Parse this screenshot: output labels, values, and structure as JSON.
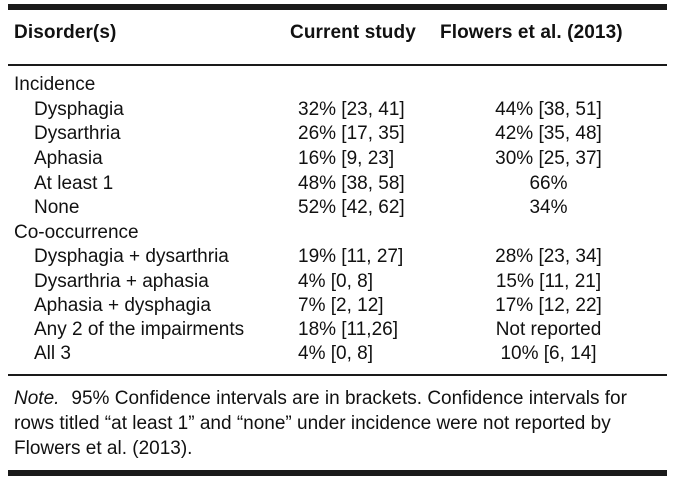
{
  "table": {
    "headers": {
      "disorders": "Disorder(s)",
      "current": "Current study",
      "flowers": "Flowers et al. (2013)"
    },
    "sections": [
      {
        "title": "Incidence",
        "rows": [
          {
            "label": "Dysphagia",
            "current": "32% [23, 41]",
            "flowers": "44% [38, 51]"
          },
          {
            "label": "Dysarthria",
            "current": "26% [17, 35]",
            "flowers": "42% [35, 48]"
          },
          {
            "label": "Aphasia",
            "current": "16% [9, 23]",
            "flowers": "30% [25, 37]"
          },
          {
            "label": "At least 1",
            "current": "48% [38, 58]",
            "flowers": "66%"
          },
          {
            "label": "None",
            "current": "52% [42, 62]",
            "flowers": "34%"
          }
        ]
      },
      {
        "title": "Co-occurrence",
        "rows": [
          {
            "label": "Dysphagia + dysarthria",
            "current": "19% [11, 27]",
            "flowers": "28% [23, 34]"
          },
          {
            "label": "Dysarthria + aphasia",
            "current": "4% [0, 8]",
            "flowers": "15% [11, 21]"
          },
          {
            "label": "Aphasia + dysphagia",
            "current": "7% [2, 12]",
            "flowers": "17% [12, 22]"
          },
          {
            "label": "Any 2 of the impairments",
            "current": "18% [11,26]",
            "flowers": "Not reported"
          },
          {
            "label": "All 3",
            "current": "4% [0, 8]",
            "flowers": "10% [6, 14]"
          }
        ]
      }
    ]
  },
  "note": {
    "label": "Note.",
    "text": "95% Confidence intervals are in brackets. Confidence intervals for rows titled “at least 1” and “none” under incidence were not reported by Flowers et al. (2013)."
  }
}
